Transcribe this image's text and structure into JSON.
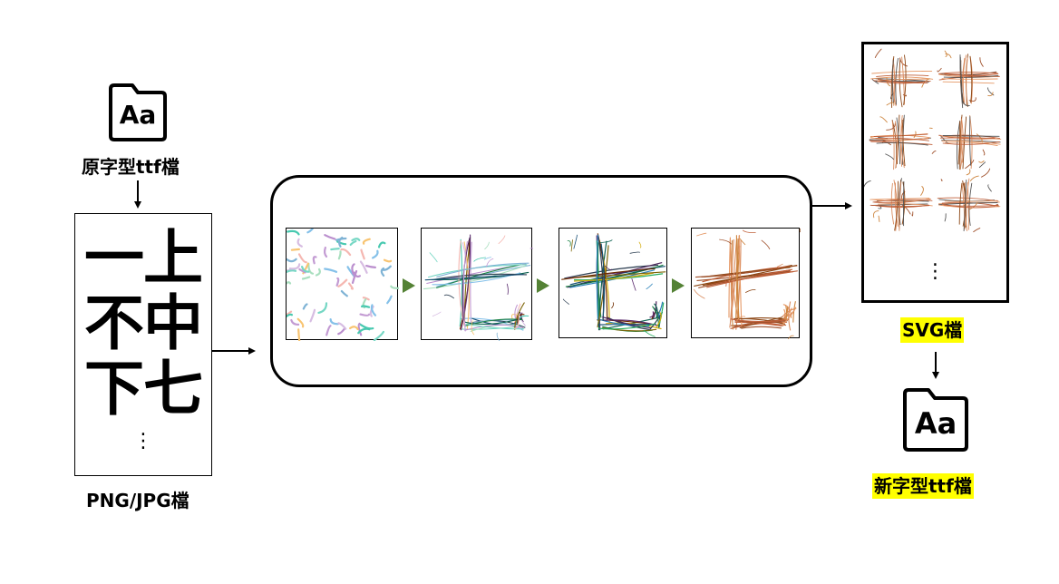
{
  "source_font": {
    "icon": "font-file-icon",
    "icon_text": "Aa",
    "label": "原字型ttf檔"
  },
  "raster_input": {
    "glyphs": [
      "一",
      "上",
      "不",
      "中",
      "下",
      "七"
    ],
    "ellipsis": "⋮",
    "label": "PNG/JPG檔"
  },
  "pipeline": {
    "stages": [
      "random-strokes",
      "stroke-optimization-1",
      "stroke-optimization-2",
      "stroke-optimization-3"
    ]
  },
  "svg_output": {
    "glyphs": [
      "一",
      "上",
      "不",
      "中",
      "下",
      "七"
    ],
    "ellipsis": "⋮",
    "label": "SVG檔"
  },
  "new_font": {
    "icon": "font-file-icon",
    "icon_text": "Aa",
    "label": "新字型ttf檔"
  },
  "colors": {
    "arrow": "#000000",
    "stage_arrow": "#548235",
    "highlight": "#ffff00",
    "stroke_output": "#c0603a"
  }
}
